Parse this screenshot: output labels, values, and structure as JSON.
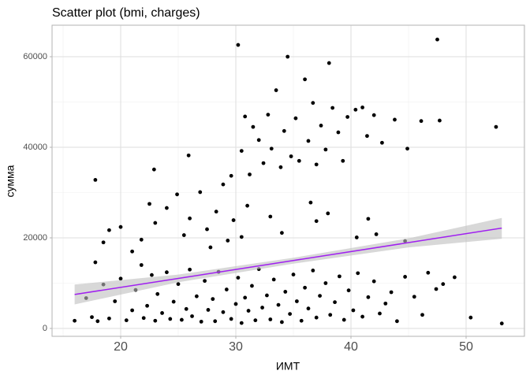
{
  "chart_data": {
    "type": "scatter",
    "title": "Scatter plot (bmi, charges)",
    "x_label": "ИМТ",
    "y_label": "сумма",
    "color": "#000000",
    "x": [
      16,
      17,
      17.5,
      18,
      18.5,
      19,
      19.5,
      20,
      20.5,
      21,
      21.3,
      21.8,
      22,
      22.3,
      22.7,
      23,
      23.2,
      23.6,
      24,
      24.3,
      24.6,
      25,
      25.3,
      25.7,
      26,
      26.2,
      26.6,
      27,
      27.3,
      27.6,
      28,
      28.2,
      28.5,
      28.9,
      29.2,
      29.6,
      30,
      30.2,
      30.5,
      30.8,
      31.1,
      31.4,
      31.7,
      32,
      32.3,
      32.7,
      33,
      33.3,
      33.7,
      34,
      34.3,
      34.7,
      35,
      35.3,
      35.7,
      36,
      36.3,
      36.7,
      37,
      37.3,
      37.8,
      38.2,
      38.6,
      39,
      39.4,
      39.8,
      40.2,
      40.6,
      41,
      41.5,
      42,
      42.5,
      43,
      43.5,
      44,
      44.7,
      45.5,
      46.2,
      46.7,
      47.4,
      48,
      49,
      50.4,
      53.1,
      17.8,
      18.5,
      19,
      20,
      21,
      21.8,
      22.5,
      23,
      24,
      24.9,
      25.5,
      26,
      26.9,
      27.5,
      27.8,
      28.3,
      28.9,
      29.3,
      29.8,
      30.5,
      31,
      33,
      34,
      36.5,
      37,
      38,
      40.5,
      41.5,
      42.2,
      44.7,
      17.8,
      22.9,
      25.9,
      29.6,
      30.2,
      30.5,
      30.8,
      31.2,
      31.5,
      32,
      32.4,
      32.8,
      33.1,
      33.5,
      33.9,
      34.2,
      34.5,
      34.8,
      35.2,
      35.5,
      36,
      36.3,
      36.7,
      37,
      37.4,
      37.8,
      38.1,
      38.4,
      38.9,
      39.3,
      39.7,
      40.4,
      41,
      41.4,
      42,
      42.7,
      43.8,
      44.9,
      46.1,
      47.5,
      47.7,
      52.6
    ],
    "values": [
      1700,
      6700,
      2500,
      1600,
      9700,
      2200,
      6000,
      11000,
      1800,
      4000,
      8500,
      14000,
      2300,
      5000,
      11800,
      1700,
      7600,
      3400,
      12400,
      2100,
      5900,
      9800,
      1900,
      4300,
      13000,
      2700,
      7100,
      1500,
      10500,
      4100,
      6500,
      1600,
      12500,
      3600,
      8600,
      2100,
      5400,
      11200,
      1200,
      6800,
      3900,
      9400,
      1800,
      13100,
      4600,
      7300,
      2000,
      10800,
      5200,
      1400,
      8100,
      3200,
      11900,
      6000,
      1700,
      9000,
      4400,
      12800,
      2400,
      7200,
      10000,
      3000,
      5800,
      11500,
      1900,
      8400,
      4000,
      12200,
      2600,
      6900,
      10400,
      3300,
      5500,
      8000,
      1600,
      11400,
      7000,
      3000,
      12300,
      8700,
      9800,
      11300,
      2400,
      1100,
      14600,
      19000,
      21700,
      22400,
      17000,
      19600,
      27500,
      23300,
      26600,
      29600,
      20600,
      24300,
      30100,
      21900,
      17900,
      25800,
      31800,
      19400,
      23900,
      20200,
      27100,
      24700,
      21100,
      27800,
      23700,
      25400,
      20100,
      24200,
      20800,
      19300,
      32800,
      35100,
      38200,
      33700,
      62600,
      39200,
      46800,
      34000,
      44500,
      41600,
      36500,
      47200,
      39700,
      52600,
      35600,
      43600,
      60000,
      38000,
      46400,
      37000,
      55000,
      41400,
      49800,
      36200,
      44800,
      39500,
      58600,
      48700,
      43300,
      37000,
      46700,
      48300,
      48800,
      42500,
      47100,
      41000,
      46100,
      39700,
      45800,
      63800,
      45900,
      44500
    ],
    "trend": {
      "color": "#a020f0",
      "band_color": "#bebebe",
      "x": [
        16,
        25,
        35,
        45,
        53.1
      ],
      "values": [
        7500,
        11050,
        15000,
        18950,
        22150
      ],
      "lower": [
        5300,
        10200,
        14300,
        17900,
        19800
      ],
      "upper": [
        9700,
        11900,
        15600,
        19900,
        24400
      ]
    },
    "xlim": [
      14.04,
      55.07
    ],
    "ylim": [
      -1739,
      66957
    ],
    "xticks": [
      20,
      30,
      40,
      50
    ],
    "yticks": [
      0,
      20000,
      40000,
      60000
    ],
    "x_minor_ticks": [
      15,
      25,
      35,
      45,
      55
    ],
    "y_minor_ticks": [
      10000,
      30000,
      50000
    ],
    "grid": true
  }
}
